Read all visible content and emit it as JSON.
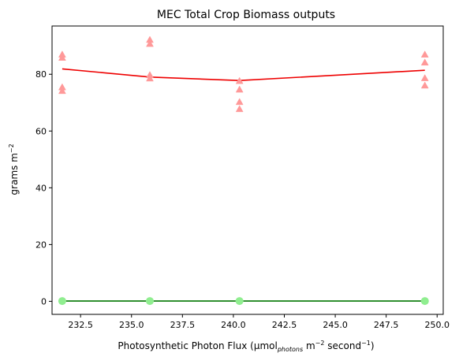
{
  "chart_data": {
    "type": "scatter",
    "title": "MEC Total Crop Biomass outputs",
    "xlabel": {
      "base": "Photosynthetic Photon Flux (μmol",
      "sub": "photons",
      "mid1": " m",
      "sup1": "−2",
      "mid2": " second",
      "sup2": "−1",
      "end": ")"
    },
    "ylabel": {
      "base": "grams m",
      "sup": "−2"
    },
    "xlim": [
      231.1,
      250.3
    ],
    "ylim": [
      -4.6,
      97
    ],
    "xticks": [
      232.5,
      235.0,
      237.5,
      240.0,
      242.5,
      245.0,
      247.5,
      250.0
    ],
    "xtick_labels": [
      "232.5",
      "235.0",
      "237.5",
      "240.0",
      "242.5",
      "245.0",
      "247.5",
      "250.0"
    ],
    "yticks": [
      0,
      20,
      40,
      60,
      80
    ],
    "ytick_labels": [
      "0",
      "20",
      "40",
      "60",
      "80"
    ],
    "series": [
      {
        "kind": "scatter",
        "marker": "triangle",
        "color": "#ff9999",
        "points": [
          [
            231.6,
            86.8
          ],
          [
            231.6,
            85.7
          ],
          [
            231.6,
            75.3
          ],
          [
            231.6,
            74.0
          ],
          [
            235.9,
            92.0
          ],
          [
            235.9,
            90.6
          ],
          [
            235.9,
            79.6
          ],
          [
            235.9,
            78.4
          ],
          [
            240.3,
            77.5
          ],
          [
            240.3,
            74.5
          ],
          [
            240.3,
            70.1
          ],
          [
            240.3,
            67.6
          ],
          [
            249.4,
            86.8
          ],
          [
            249.4,
            84.0
          ],
          [
            249.4,
            78.5
          ],
          [
            249.4,
            75.9
          ]
        ]
      },
      {
        "kind": "line",
        "color": "#ee0000",
        "points": [
          [
            231.6,
            81.9
          ],
          [
            235.9,
            79.0
          ],
          [
            240.3,
            77.8
          ],
          [
            249.4,
            81.4
          ]
        ]
      },
      {
        "kind": "scatter",
        "marker": "circle",
        "color": "#90ee90",
        "points": [
          [
            231.6,
            0.1
          ],
          [
            235.9,
            0.1
          ],
          [
            240.3,
            0.1
          ],
          [
            249.4,
            0.1
          ]
        ]
      },
      {
        "kind": "line",
        "color": "#007700",
        "points": [
          [
            231.6,
            0.1
          ],
          [
            235.9,
            0.1
          ],
          [
            240.3,
            0.1
          ],
          [
            249.4,
            0.1
          ]
        ]
      }
    ],
    "grid": false,
    "legend": false
  }
}
